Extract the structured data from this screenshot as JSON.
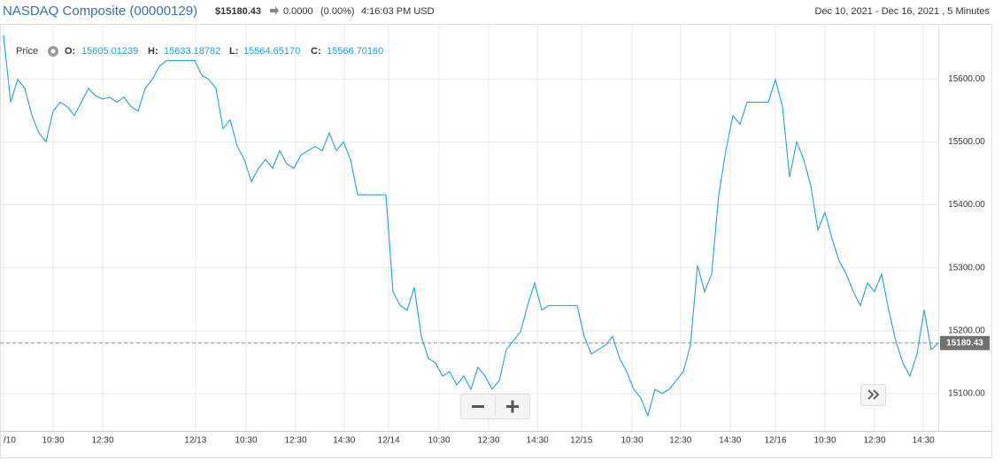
{
  "header": {
    "title": "NASDAQ Composite (00000129)",
    "price": "$15180.43",
    "change": "0.0000",
    "change_pct": "(0.00%)",
    "time": "4:16:03 PM USD",
    "range": "Dec 10, 2021 - Dec 16, 2021 , 5 Minutes"
  },
  "ohlc": {
    "o_label": "O:",
    "o": "15605.01239",
    "h_label": "H:",
    "h": "15633.18782",
    "l_label": "L:",
    "l": "15564.65170",
    "c_label": "C:",
    "c": "15566.70160"
  },
  "chart_data": {
    "type": "line",
    "series": [
      {
        "name": "Price",
        "color": "#1ea3dc",
        "values": [
          15669,
          15563,
          15599,
          15585,
          15542,
          15514,
          15500,
          15549,
          15563,
          15556,
          15542,
          15563,
          15585,
          15573,
          15568,
          15571,
          15563,
          15571,
          15556,
          15549,
          15585,
          15599,
          15620,
          15629,
          15629,
          15629,
          15629,
          15629,
          15606,
          15599,
          15585,
          15521,
          15535,
          15493,
          15472,
          15437,
          15458,
          15472,
          15458,
          15486,
          15465,
          15458,
          15479,
          15486,
          15493,
          15486,
          15514,
          15486,
          15500,
          15472,
          15416,
          15416,
          15416,
          15416,
          15416,
          15262,
          15240,
          15233,
          15269,
          15191,
          15156,
          15149,
          15128,
          15135,
          15114,
          15128,
          15107,
          15142,
          15128,
          15107,
          15121,
          15170,
          15184,
          15198,
          15240,
          15276,
          15233,
          15240,
          15240,
          15240,
          15240,
          15240,
          15191,
          15163,
          15170,
          15177,
          15191,
          15156,
          15135,
          15107,
          15093,
          15065,
          15107,
          15100,
          15107,
          15121,
          15135,
          15177,
          15304,
          15262,
          15290,
          15416,
          15486,
          15542,
          15528,
          15563,
          15563,
          15563,
          15563,
          15599,
          15556,
          15444,
          15500,
          15472,
          15430,
          15360,
          15388,
          15346,
          15311,
          15290,
          15262,
          15240,
          15276,
          15262,
          15290,
          15233,
          15184,
          15149,
          15128,
          15163,
          15233,
          15170,
          15180
        ]
      }
    ],
    "last_price": 15180.43,
    "xlim": [
      0,
      132
    ],
    "xticks": [
      {
        "value": 0,
        "label": "/10"
      },
      {
        "value": 7,
        "label": "10:30"
      },
      {
        "value": 14,
        "label": "12:30"
      },
      {
        "value": 27.1,
        "label": "12/13"
      },
      {
        "value": 34.25,
        "label": "10:30"
      },
      {
        "value": 41.25,
        "label": "12:30"
      },
      {
        "value": 48.1,
        "label": "14:30"
      },
      {
        "value": 54.4,
        "label": "12/14"
      },
      {
        "value": 61.5,
        "label": "10:30"
      },
      {
        "value": 68.5,
        "label": "12:30"
      },
      {
        "value": 75.4,
        "label": "14:30"
      },
      {
        "value": 81.6,
        "label": "12/15"
      },
      {
        "value": 88.75,
        "label": "10:30"
      },
      {
        "value": 95.6,
        "label": "12:30"
      },
      {
        "value": 102.6,
        "label": "14:30"
      },
      {
        "value": 109,
        "label": "12/16"
      },
      {
        "value": 116,
        "label": "10:30"
      },
      {
        "value": 123,
        "label": "12:30"
      },
      {
        "value": 129.9,
        "label": "14:30"
      }
    ],
    "ylim": [
      15041,
      15686
    ],
    "yticks": [
      {
        "value": 15100,
        "label": "15100.00"
      },
      {
        "value": 15200,
        "label": "15200.00"
      },
      {
        "value": 15300,
        "label": "15300.00"
      },
      {
        "value": 15400,
        "label": "15400.00"
      },
      {
        "value": 15500,
        "label": "15500.00"
      },
      {
        "value": 15600,
        "label": "15600.00"
      }
    ],
    "grid": true
  }
}
